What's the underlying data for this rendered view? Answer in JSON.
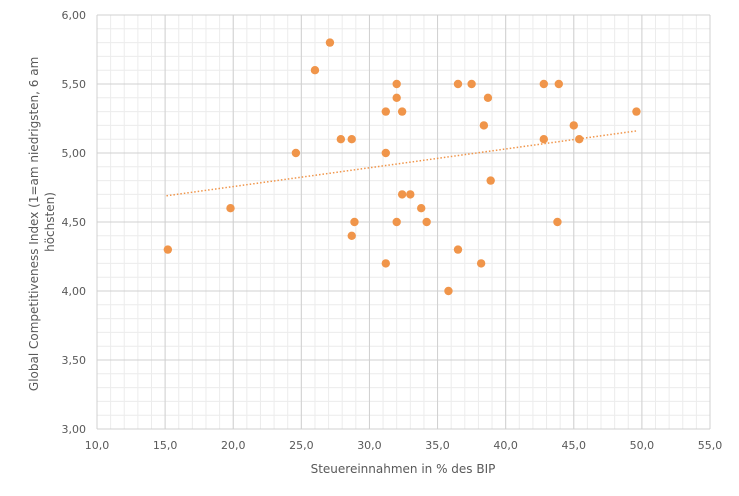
{
  "chart_data": {
    "type": "scatter",
    "xlabel": "Steuereinnahmen in % des BIP",
    "ylabel_lines": [
      "Global Competitiveness Index (1=am niedrigsten, 6 am",
      "höchsten)"
    ],
    "xlim": [
      10,
      55
    ],
    "ylim": [
      3,
      6
    ],
    "x_ticks": [
      "10,0",
      "15,0",
      "20,0",
      "25,0",
      "30,0",
      "35,0",
      "40,0",
      "45,0",
      "50,0",
      "55,0"
    ],
    "y_ticks": [
      "3,00",
      "3,50",
      "4,00",
      "4,50",
      "5,00",
      "5,50",
      "6,00"
    ],
    "grid": true,
    "legend": "none",
    "point_color": "#F0954A",
    "trendline": {
      "type": "linear",
      "color": "#F0954A",
      "style": "dotted",
      "x": [
        15.1,
        49.6
      ],
      "y": [
        4.69,
        5.16
      ]
    },
    "points": [
      {
        "x": 15.2,
        "y": 4.3
      },
      {
        "x": 19.8,
        "y": 4.6
      },
      {
        "x": 24.6,
        "y": 5.0
      },
      {
        "x": 26.0,
        "y": 5.6
      },
      {
        "x": 27.1,
        "y": 5.8
      },
      {
        "x": 27.9,
        "y": 5.1
      },
      {
        "x": 28.7,
        "y": 5.1
      },
      {
        "x": 28.7,
        "y": 4.4
      },
      {
        "x": 28.9,
        "y": 4.5
      },
      {
        "x": 31.2,
        "y": 5.3
      },
      {
        "x": 31.2,
        "y": 5.0
      },
      {
        "x": 31.2,
        "y": 4.2
      },
      {
        "x": 32.0,
        "y": 5.5
      },
      {
        "x": 32.0,
        "y": 5.4
      },
      {
        "x": 32.4,
        "y": 5.3
      },
      {
        "x": 32.0,
        "y": 4.5
      },
      {
        "x": 32.4,
        "y": 4.7
      },
      {
        "x": 33.0,
        "y": 4.7
      },
      {
        "x": 33.8,
        "y": 4.6
      },
      {
        "x": 34.2,
        "y": 4.5
      },
      {
        "x": 35.8,
        "y": 4.0
      },
      {
        "x": 36.5,
        "y": 5.5
      },
      {
        "x": 36.5,
        "y": 4.3
      },
      {
        "x": 37.5,
        "y": 5.5
      },
      {
        "x": 38.2,
        "y": 4.2
      },
      {
        "x": 38.4,
        "y": 5.2
      },
      {
        "x": 38.7,
        "y": 5.4
      },
      {
        "x": 38.9,
        "y": 4.8
      },
      {
        "x": 42.8,
        "y": 5.5
      },
      {
        "x": 42.8,
        "y": 5.1
      },
      {
        "x": 43.8,
        "y": 4.5
      },
      {
        "x": 43.9,
        "y": 5.5
      },
      {
        "x": 45.0,
        "y": 5.2
      },
      {
        "x": 45.4,
        "y": 5.1
      },
      {
        "x": 49.6,
        "y": 5.3
      }
    ]
  }
}
